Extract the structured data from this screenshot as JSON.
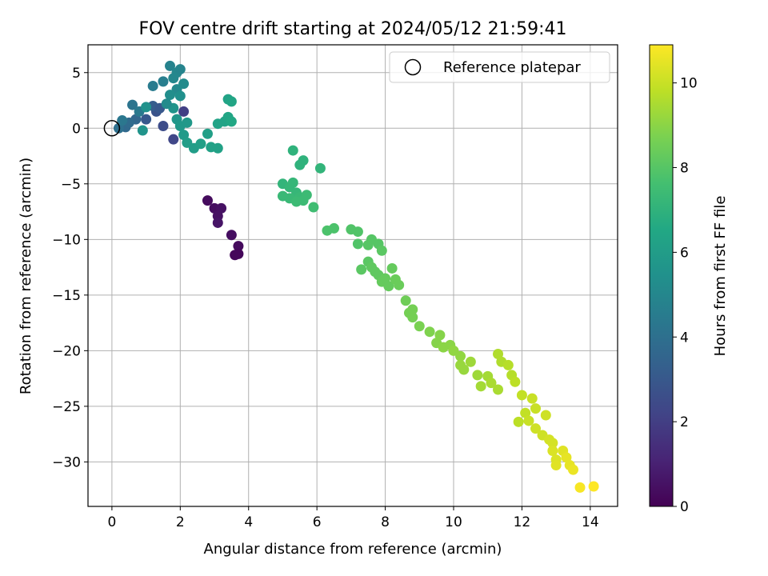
{
  "chart_data": {
    "type": "scatter",
    "title": "FOV centre drift starting at 2024/05/12 21:59:41",
    "xlabel": "Angular distance from reference (arcmin)",
    "ylabel": "Rotation from reference (arcmin)",
    "colorbar_label": "Hours from first FF file",
    "colormap": "viridis",
    "xlim": [
      -0.7,
      14.8
    ],
    "ylim": [
      -34.0,
      7.5
    ],
    "clim": [
      0,
      10.9
    ],
    "xticks": [
      0,
      2,
      4,
      6,
      8,
      10,
      12,
      14
    ],
    "yticks": [
      5,
      0,
      -5,
      -10,
      -15,
      -20,
      -25,
      -30
    ],
    "cticks": [
      0,
      2,
      4,
      6,
      8,
      10
    ],
    "grid": true,
    "legend": {
      "location": "upper right",
      "entries": [
        "Reference platepar"
      ]
    },
    "reference": {
      "x": 0,
      "y": 0,
      "label": "Reference platepar"
    },
    "points": [
      {
        "x": 2.8,
        "y": -6.5,
        "t": 0.3
      },
      {
        "x": 3.0,
        "y": -7.2,
        "t": 0.4
      },
      {
        "x": 3.2,
        "y": -7.2,
        "t": 0.5
      },
      {
        "x": 3.1,
        "y": -7.9,
        "t": 0.5
      },
      {
        "x": 3.1,
        "y": -8.5,
        "t": 0.6
      },
      {
        "x": 3.5,
        "y": -9.6,
        "t": 0.4
      },
      {
        "x": 3.7,
        "y": -10.6,
        "t": 0.3
      },
      {
        "x": 3.7,
        "y": -11.3,
        "t": 0.2
      },
      {
        "x": 3.6,
        "y": -11.4,
        "t": 0.2
      },
      {
        "x": 2.1,
        "y": 1.5,
        "t": 2.0
      },
      {
        "x": 1.8,
        "y": -1.0,
        "t": 2.3
      },
      {
        "x": 1.5,
        "y": 0.2,
        "t": 2.5
      },
      {
        "x": 1.3,
        "y": 1.5,
        "t": 2.8
      },
      {
        "x": 1.0,
        "y": 0.8,
        "t": 3.0
      },
      {
        "x": 1.2,
        "y": 2.0,
        "t": 3.2
      },
      {
        "x": 1.4,
        "y": 1.8,
        "t": 3.0
      },
      {
        "x": 0.7,
        "y": 0.8,
        "t": 3.6
      },
      {
        "x": 0.4,
        "y": 0.1,
        "t": 3.7
      },
      {
        "x": 0.5,
        "y": 0.5,
        "t": 3.8
      },
      {
        "x": 0.2,
        "y": 0.0,
        "t": 4.0
      },
      {
        "x": 0.6,
        "y": 2.1,
        "t": 4.2
      },
      {
        "x": 0.8,
        "y": 1.5,
        "t": 4.4
      },
      {
        "x": 0.3,
        "y": 0.7,
        "t": 4.3
      },
      {
        "x": 1.2,
        "y": 3.8,
        "t": 4.5
      },
      {
        "x": 1.5,
        "y": 4.2,
        "t": 4.6
      },
      {
        "x": 1.7,
        "y": 5.6,
        "t": 4.8
      },
      {
        "x": 1.9,
        "y": 5.0,
        "t": 5.0
      },
      {
        "x": 1.8,
        "y": 4.5,
        "t": 5.0
      },
      {
        "x": 1.9,
        "y": 3.5,
        "t": 5.1
      },
      {
        "x": 2.0,
        "y": 5.3,
        "t": 4.9
      },
      {
        "x": 2.1,
        "y": 4.0,
        "t": 5.2
      },
      {
        "x": 1.7,
        "y": 3.0,
        "t": 5.3
      },
      {
        "x": 2.0,
        "y": 2.9,
        "t": 5.4
      },
      {
        "x": 1.0,
        "y": 1.9,
        "t": 5.5
      },
      {
        "x": 0.9,
        "y": -0.2,
        "t": 5.6
      },
      {
        "x": 1.8,
        "y": 1.8,
        "t": 5.6
      },
      {
        "x": 1.9,
        "y": 0.8,
        "t": 5.7
      },
      {
        "x": 2.0,
        "y": 0.2,
        "t": 5.8
      },
      {
        "x": 2.2,
        "y": 0.5,
        "t": 5.8
      },
      {
        "x": 2.1,
        "y": -0.6,
        "t": 5.9
      },
      {
        "x": 2.2,
        "y": -1.3,
        "t": 6.0
      },
      {
        "x": 2.4,
        "y": -1.8,
        "t": 6.0
      },
      {
        "x": 2.6,
        "y": -1.4,
        "t": 6.1
      },
      {
        "x": 2.8,
        "y": -0.5,
        "t": 6.1
      },
      {
        "x": 2.9,
        "y": -1.7,
        "t": 6.2
      },
      {
        "x": 3.1,
        "y": -1.8,
        "t": 6.2
      },
      {
        "x": 3.1,
        "y": 0.4,
        "t": 6.3
      },
      {
        "x": 3.3,
        "y": 0.6,
        "t": 6.3
      },
      {
        "x": 3.4,
        "y": 1.0,
        "t": 6.4
      },
      {
        "x": 3.4,
        "y": 2.6,
        "t": 6.3
      },
      {
        "x": 3.5,
        "y": 2.4,
        "t": 6.4
      },
      {
        "x": 3.5,
        "y": 0.6,
        "t": 6.5
      },
      {
        "x": 1.6,
        "y": 2.2,
        "t": 5.2
      },
      {
        "x": 5.3,
        "y": -2.0,
        "t": 7.0
      },
      {
        "x": 5.5,
        "y": -3.3,
        "t": 7.0
      },
      {
        "x": 5.6,
        "y": -2.9,
        "t": 7.0
      },
      {
        "x": 6.1,
        "y": -3.6,
        "t": 7.1
      },
      {
        "x": 5.0,
        "y": -5.0,
        "t": 7.1
      },
      {
        "x": 5.2,
        "y": -5.3,
        "t": 7.2
      },
      {
        "x": 5.3,
        "y": -4.9,
        "t": 7.2
      },
      {
        "x": 5.4,
        "y": -5.8,
        "t": 7.2
      },
      {
        "x": 5.5,
        "y": -6.2,
        "t": 7.3
      },
      {
        "x": 5.0,
        "y": -6.1,
        "t": 7.3
      },
      {
        "x": 5.2,
        "y": -6.3,
        "t": 7.3
      },
      {
        "x": 5.4,
        "y": -6.6,
        "t": 7.4
      },
      {
        "x": 5.6,
        "y": -6.5,
        "t": 7.4
      },
      {
        "x": 5.7,
        "y": -6.0,
        "t": 7.4
      },
      {
        "x": 5.9,
        "y": -7.1,
        "t": 7.5
      },
      {
        "x": 6.3,
        "y": -9.2,
        "t": 7.8
      },
      {
        "x": 6.5,
        "y": -9.0,
        "t": 7.8
      },
      {
        "x": 7.0,
        "y": -9.1,
        "t": 7.9
      },
      {
        "x": 7.2,
        "y": -9.3,
        "t": 7.9
      },
      {
        "x": 7.2,
        "y": -10.4,
        "t": 7.9
      },
      {
        "x": 7.5,
        "y": -10.5,
        "t": 8.0
      },
      {
        "x": 7.6,
        "y": -10.0,
        "t": 8.0
      },
      {
        "x": 7.8,
        "y": -10.4,
        "t": 8.0
      },
      {
        "x": 7.9,
        "y": -11.0,
        "t": 8.1
      },
      {
        "x": 7.3,
        "y": -12.7,
        "t": 8.1
      },
      {
        "x": 7.5,
        "y": -12.0,
        "t": 8.1
      },
      {
        "x": 7.6,
        "y": -12.5,
        "t": 8.2
      },
      {
        "x": 7.7,
        "y": -12.9,
        "t": 8.2
      },
      {
        "x": 7.8,
        "y": -13.2,
        "t": 8.2
      },
      {
        "x": 7.9,
        "y": -13.8,
        "t": 8.3
      },
      {
        "x": 8.0,
        "y": -13.5,
        "t": 8.3
      },
      {
        "x": 8.1,
        "y": -14.2,
        "t": 8.3
      },
      {
        "x": 8.2,
        "y": -12.6,
        "t": 8.3
      },
      {
        "x": 8.3,
        "y": -13.6,
        "t": 8.4
      },
      {
        "x": 8.4,
        "y": -14.1,
        "t": 8.4
      },
      {
        "x": 8.6,
        "y": -15.5,
        "t": 8.5
      },
      {
        "x": 8.7,
        "y": -16.6,
        "t": 8.6
      },
      {
        "x": 8.8,
        "y": -16.3,
        "t": 8.6
      },
      {
        "x": 8.8,
        "y": -17.0,
        "t": 8.6
      },
      {
        "x": 9.0,
        "y": -17.8,
        "t": 8.7
      },
      {
        "x": 9.3,
        "y": -18.3,
        "t": 8.8
      },
      {
        "x": 9.5,
        "y": -19.3,
        "t": 8.9
      },
      {
        "x": 9.6,
        "y": -18.6,
        "t": 8.9
      },
      {
        "x": 9.7,
        "y": -19.7,
        "t": 9.0
      },
      {
        "x": 9.9,
        "y": -19.5,
        "t": 9.0
      },
      {
        "x": 10.0,
        "y": -20.0,
        "t": 9.1
      },
      {
        "x": 10.2,
        "y": -20.5,
        "t": 9.1
      },
      {
        "x": 10.2,
        "y": -21.3,
        "t": 9.2
      },
      {
        "x": 10.3,
        "y": -21.7,
        "t": 9.2
      },
      {
        "x": 10.5,
        "y": -21.0,
        "t": 9.3
      },
      {
        "x": 10.7,
        "y": -22.2,
        "t": 9.3
      },
      {
        "x": 10.8,
        "y": -23.2,
        "t": 9.4
      },
      {
        "x": 11.0,
        "y": -22.3,
        "t": 9.4
      },
      {
        "x": 11.1,
        "y": -22.9,
        "t": 9.5
      },
      {
        "x": 11.3,
        "y": -23.5,
        "t": 9.5
      },
      {
        "x": 11.3,
        "y": -20.3,
        "t": 9.6
      },
      {
        "x": 11.4,
        "y": -21.0,
        "t": 9.6
      },
      {
        "x": 11.6,
        "y": -21.3,
        "t": 9.7
      },
      {
        "x": 11.7,
        "y": -22.2,
        "t": 9.7
      },
      {
        "x": 11.8,
        "y": -22.8,
        "t": 9.8
      },
      {
        "x": 11.9,
        "y": -26.4,
        "t": 9.8
      },
      {
        "x": 12.0,
        "y": -24.0,
        "t": 9.9
      },
      {
        "x": 12.1,
        "y": -25.6,
        "t": 9.9
      },
      {
        "x": 12.2,
        "y": -26.3,
        "t": 10.0
      },
      {
        "x": 12.3,
        "y": -24.3,
        "t": 10.0
      },
      {
        "x": 12.4,
        "y": -25.2,
        "t": 10.0
      },
      {
        "x": 12.4,
        "y": -27.0,
        "t": 10.1
      },
      {
        "x": 12.6,
        "y": -27.6,
        "t": 10.1
      },
      {
        "x": 12.7,
        "y": -25.8,
        "t": 10.1
      },
      {
        "x": 12.8,
        "y": -28.0,
        "t": 10.2
      },
      {
        "x": 12.9,
        "y": -28.3,
        "t": 10.2
      },
      {
        "x": 12.9,
        "y": -29.0,
        "t": 10.3
      },
      {
        "x": 13.0,
        "y": -29.8,
        "t": 10.3
      },
      {
        "x": 13.0,
        "y": -30.3,
        "t": 10.4
      },
      {
        "x": 13.2,
        "y": -29.0,
        "t": 10.4
      },
      {
        "x": 13.3,
        "y": -29.6,
        "t": 10.5
      },
      {
        "x": 13.4,
        "y": -30.3,
        "t": 10.5
      },
      {
        "x": 13.5,
        "y": -30.7,
        "t": 10.6
      },
      {
        "x": 13.7,
        "y": -32.3,
        "t": 10.8
      },
      {
        "x": 14.1,
        "y": -32.2,
        "t": 10.9
      }
    ]
  }
}
